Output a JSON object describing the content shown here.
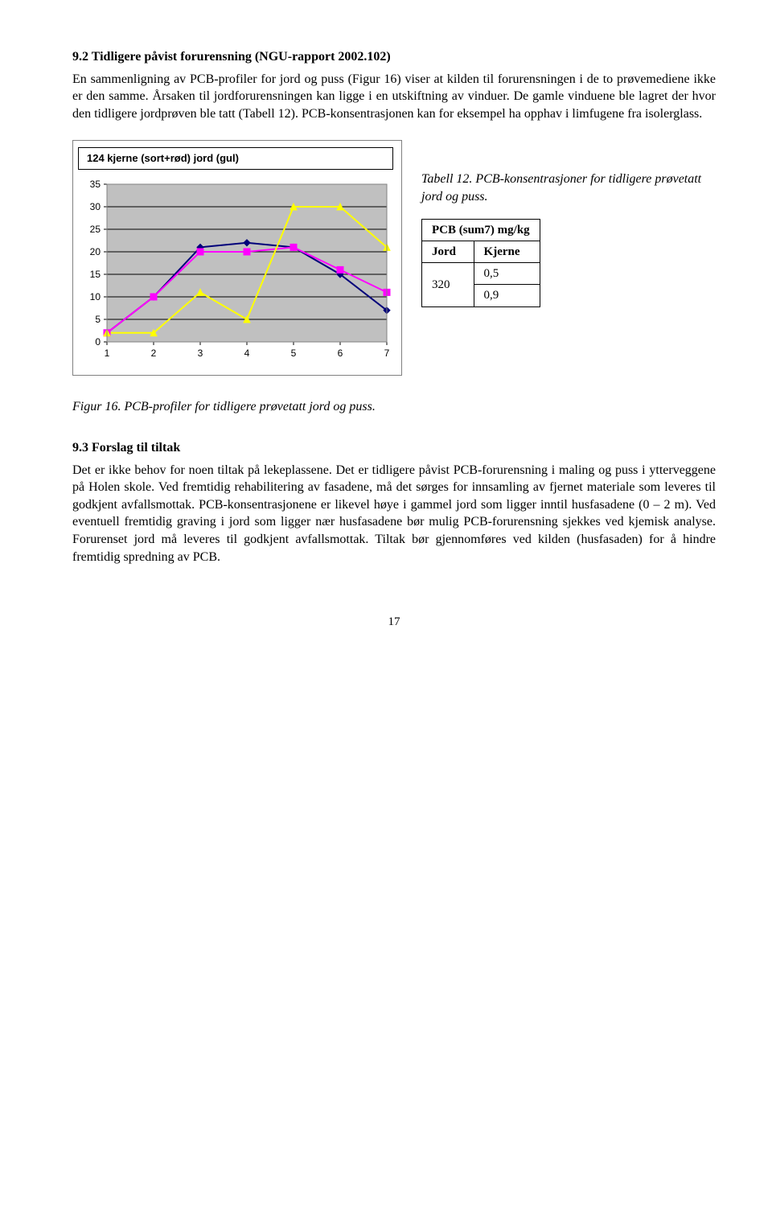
{
  "section1": {
    "heading": "9.2  Tidligere påvist forurensning (NGU-rapport 2002.102)",
    "para": "En sammenligning av PCB-profiler for jord og puss (Figur 16) viser at kilden til forurensningen i de to prøvemediene ikke er den samme. Årsaken til jordforurensningen kan ligge i en utskiftning av vinduer. De gamle vinduene ble lagret der hvor den tidligere jordprøven ble tatt (Tabell 12). PCB-konsentrasjonen kan for eksempel ha opphav i limfugene fra isolerglass."
  },
  "chart": {
    "title": "124 kjerne (sort+rød) jord (gul)",
    "type": "line",
    "x": [
      1,
      2,
      3,
      4,
      5,
      6,
      7
    ],
    "series": [
      {
        "name": "sort",
        "color": "#00007a",
        "marker": "diamond",
        "markerFill": "#00007a",
        "values": [
          2,
          10,
          21,
          22,
          21,
          15,
          7
        ]
      },
      {
        "name": "rød",
        "color": "#ff00ff",
        "marker": "square",
        "markerFill": "#ff00ff",
        "values": [
          2,
          10,
          20,
          20,
          21,
          16,
          11
        ]
      },
      {
        "name": "gul",
        "color": "#ffff00",
        "marker": "triangle",
        "markerFill": "#ffff00",
        "values": [
          2,
          2,
          11,
          5,
          30,
          30,
          21
        ]
      }
    ],
    "ylim": [
      0,
      35
    ],
    "ytick_step": 5,
    "xlim": [
      1,
      7
    ],
    "xtick_step": 1,
    "tick_fontsize": 12,
    "tick_color": "#000000",
    "grid_color": "#000000",
    "plot_bg": "#c0c0c0",
    "plot_border": "#808080",
    "outer_border": "#808080",
    "line_width": 2,
    "marker_size": 8
  },
  "table12": {
    "caption": "Tabell 12. PCB-konsentrasjoner for tidligere prøvetatt jord og puss.",
    "header_merged": "PCB (sum7) mg/kg",
    "col1": "Jord",
    "col2": "Kjerne",
    "jord_val": "320",
    "kjerne_val1": "0,5",
    "kjerne_val2": "0,9"
  },
  "figure16_caption": "Figur 16. PCB-profiler for tidligere prøvetatt jord og puss.",
  "section2": {
    "heading": "9.3  Forslag til tiltak",
    "para": "Det er ikke behov for noen tiltak på lekeplassene. Det er  tidligere påvist PCB-forurensning i maling og puss i ytterveggene på Holen skole. Ved fremtidig rehabilitering av fasadene, må det sørges for innsamling av fjernet materiale som leveres til godkjent avfallsmottak. PCB-konsentrasjonene er likevel høye i gammel jord som ligger inntil husfasadene (0 – 2 m). Ved eventuell fremtidig graving i jord som ligger nær husfasadene bør mulig PCB-forurensning sjekkes ved kjemisk analyse. Forurenset jord må leveres til godkjent avfallsmottak. Tiltak bør gjennomføres ved kilden (husfasaden) for å hindre fremtidig spredning av PCB."
  },
  "page_number": "17"
}
